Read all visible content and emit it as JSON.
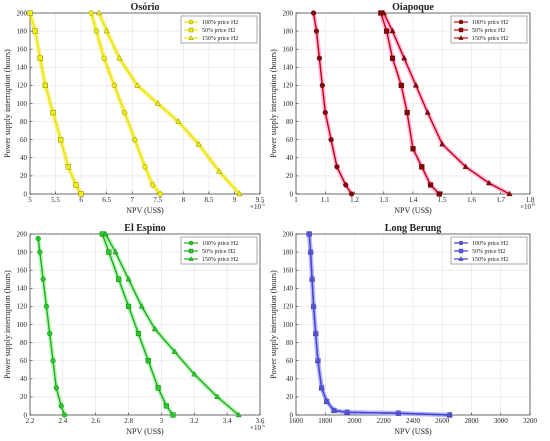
{
  "chart_data": [
    {
      "type": "line",
      "title": "Osório",
      "xlabel": "NPV (US$)",
      "ylabel": "Power supply interruption (hours)",
      "x_multiplier": "×10",
      "x_exponent": "5",
      "xlim": [
        5,
        9.5
      ],
      "ylim": [
        0,
        200
      ],
      "x_ticks": [
        5,
        5.5,
        6,
        6.5,
        7,
        7.5,
        8,
        8.5,
        9,
        9.5
      ],
      "y_ticks": [
        0,
        20,
        40,
        60,
        80,
        100,
        120,
        140,
        160,
        180,
        200
      ],
      "grid": true,
      "legend_position": "top-right",
      "marker_color": "#f2f200",
      "series": [
        {
          "name": "100% price H2",
          "marker": "circle",
          "x": [
            6.2,
            6.3,
            6.45,
            6.65,
            6.85,
            7.05,
            7.25,
            7.4,
            7.55
          ],
          "y": [
            200,
            180,
            150,
            120,
            90,
            60,
            30,
            10,
            0
          ]
        },
        {
          "name": "50% price H2",
          "marker": "square",
          "x": [
            5.0,
            5.1,
            5.2,
            5.3,
            5.45,
            5.6,
            5.75,
            5.9,
            6.0
          ],
          "y": [
            200,
            180,
            150,
            120,
            90,
            60,
            30,
            10,
            0
          ]
        },
        {
          "name": "150% price H2",
          "marker": "triangle",
          "x": [
            6.35,
            6.5,
            6.75,
            7.1,
            7.5,
            7.9,
            8.3,
            8.7,
            9.1
          ],
          "y": [
            200,
            180,
            150,
            120,
            100,
            80,
            55,
            25,
            0
          ]
        }
      ]
    },
    {
      "type": "line",
      "title": "Oiapoque",
      "xlabel": "NPV (US$)",
      "ylabel": "Power supply interruption (hours)",
      "x_multiplier": "×10",
      "x_exponent": "6",
      "xlim": [
        1,
        1.8
      ],
      "ylim": [
        0,
        200
      ],
      "x_ticks": [
        1,
        1.1,
        1.2,
        1.3,
        1.4,
        1.5,
        1.6,
        1.7,
        1.8
      ],
      "y_ticks": [
        0,
        20,
        40,
        60,
        80,
        100,
        120,
        140,
        160,
        180,
        200
      ],
      "grid": true,
      "legend_position": "top-right",
      "marker_color": "#8b0000",
      "series": [
        {
          "name": "100% price H2",
          "marker": "circle",
          "x": [
            1.06,
            1.07,
            1.08,
            1.09,
            1.1,
            1.12,
            1.14,
            1.17,
            1.19
          ],
          "y": [
            200,
            180,
            150,
            120,
            90,
            60,
            30,
            10,
            0
          ]
        },
        {
          "name": "50% price H2",
          "marker": "square",
          "x": [
            1.29,
            1.31,
            1.33,
            1.36,
            1.38,
            1.4,
            1.43,
            1.46,
            1.49
          ],
          "y": [
            200,
            180,
            150,
            120,
            90,
            50,
            30,
            10,
            0
          ]
        },
        {
          "name": "150% price H2",
          "marker": "triangle",
          "x": [
            1.3,
            1.33,
            1.37,
            1.41,
            1.45,
            1.5,
            1.58,
            1.66,
            1.73
          ],
          "y": [
            200,
            180,
            150,
            120,
            90,
            55,
            30,
            12,
            0
          ]
        }
      ]
    },
    {
      "type": "line",
      "title": "El Espino",
      "xlabel": "NPV (US$)",
      "ylabel": "Power supply interruption (hours)",
      "x_multiplier": "×10",
      "x_exponent": "5",
      "xlim": [
        2.2,
        3.6
      ],
      "ylim": [
        0,
        200
      ],
      "x_ticks": [
        2.2,
        2.4,
        2.6,
        2.8,
        3,
        3.2,
        3.4,
        3.6
      ],
      "y_ticks": [
        0,
        20,
        40,
        60,
        80,
        100,
        120,
        140,
        160,
        180,
        200
      ],
      "grid": true,
      "legend_position": "top-right",
      "marker_color": "#22cc22",
      "series": [
        {
          "name": "100% price H2",
          "marker": "circle",
          "x": [
            2.25,
            2.26,
            2.28,
            2.3,
            2.32,
            2.34,
            2.36,
            2.39,
            2.41
          ],
          "y": [
            195,
            180,
            150,
            120,
            90,
            60,
            30,
            10,
            0
          ]
        },
        {
          "name": "50% price H2",
          "marker": "square",
          "x": [
            2.64,
            2.68,
            2.74,
            2.8,
            2.86,
            2.92,
            2.98,
            3.03,
            3.07
          ],
          "y": [
            200,
            180,
            150,
            120,
            90,
            60,
            30,
            10,
            0
          ]
        },
        {
          "name": "150% price H2",
          "marker": "triangle",
          "x": [
            2.66,
            2.72,
            2.8,
            2.88,
            2.96,
            3.08,
            3.2,
            3.34,
            3.47
          ],
          "y": [
            200,
            180,
            150,
            120,
            95,
            70,
            45,
            20,
            0
          ]
        }
      ]
    },
    {
      "type": "line",
      "title": "Long Berung",
      "xlabel": "NPV (US$)",
      "ylabel": "Power supply interruption (hours)",
      "xlim": [
        1600,
        3200
      ],
      "ylim": [
        0,
        200
      ],
      "x_ticks": [
        1600,
        1800,
        2000,
        2200,
        2400,
        2600,
        2800,
        3000,
        3200
      ],
      "y_ticks": [
        0,
        20,
        40,
        60,
        80,
        100,
        120,
        140,
        160,
        180,
        200
      ],
      "grid": true,
      "legend_position": "top-right",
      "marker_color": "#5555dd",
      "series": [
        {
          "name": "100% price H2",
          "marker": "circle",
          "x": [
            1690,
            1700,
            1710,
            1720,
            1735,
            1750,
            1775,
            1810,
            1860,
            1950,
            2300,
            2650
          ],
          "y": [
            200,
            180,
            150,
            120,
            90,
            60,
            30,
            15,
            5,
            3,
            2,
            0
          ]
        },
        {
          "name": "50% price H2",
          "marker": "square",
          "x": [
            1690,
            1700,
            1710,
            1720,
            1735,
            1750,
            1775,
            1810,
            1860,
            1950,
            2300,
            2650
          ],
          "y": [
            200,
            180,
            150,
            120,
            90,
            60,
            30,
            15,
            5,
            3,
            2,
            0
          ]
        },
        {
          "name": "150% price H2",
          "marker": "triangle",
          "x": [
            1690,
            1700,
            1710,
            1720,
            1735,
            1750,
            1775,
            1810,
            1860,
            1950,
            2300,
            2650
          ],
          "y": [
            200,
            180,
            150,
            120,
            90,
            60,
            30,
            15,
            5,
            3,
            2,
            0
          ]
        }
      ]
    }
  ]
}
